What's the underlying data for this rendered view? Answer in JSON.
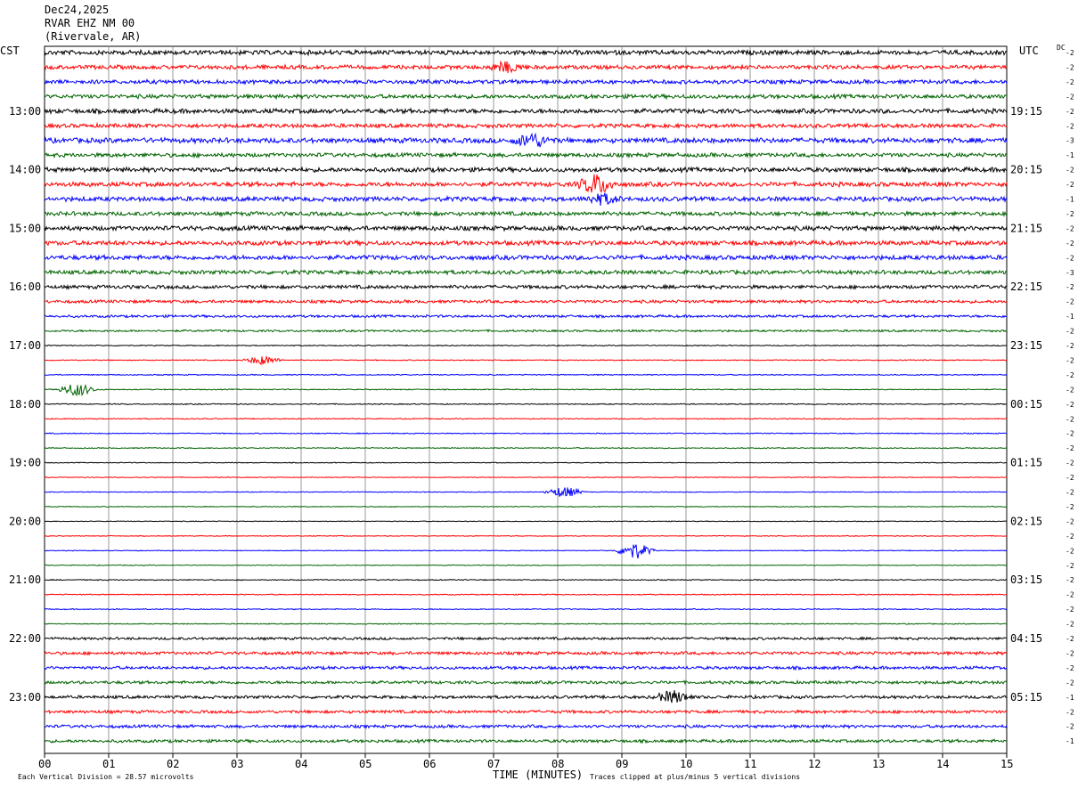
{
  "header": {
    "date": "Dec24,2025",
    "station": "RVAR EHZ NM 00",
    "location": "(Rivervale, AR)"
  },
  "labels": {
    "left_zone": "CST",
    "right_zone": "UTC",
    "dc_label": "DC",
    "x_axis_title": "TIME (MINUTES)",
    "scale_note": "Each Vertical Division =   28.57 microvolts",
    "clip_note": "Traces clipped at plus/minus 5 vertical divisions"
  },
  "colors": {
    "trace_cycle": [
      "#000000",
      "#ff0000",
      "#0000ff",
      "#006400"
    ],
    "grid": "#808080"
  },
  "chart_data": {
    "type": "line",
    "title": "RVAR EHZ NM 00",
    "xlabel": "TIME (MINUTES)",
    "ylabel": "",
    "xlim": [
      0,
      15
    ],
    "x_ticks": [
      "00",
      "01",
      "02",
      "03",
      "04",
      "05",
      "06",
      "07",
      "08",
      "09",
      "10",
      "11",
      "12",
      "13",
      "14",
      "15"
    ],
    "left_hour_labels": [
      "13:00",
      "14:00",
      "15:00",
      "16:00",
      "17:00",
      "18:00",
      "19:00",
      "20:00",
      "21:00",
      "22:00",
      "23:00"
    ],
    "right_hour_labels": [
      "19:15",
      "20:15",
      "21:15",
      "22:15",
      "23:15",
      "00:15",
      "01:15",
      "02:15",
      "03:15",
      "04:15",
      "05:15"
    ],
    "trace_count": 48,
    "dc_offsets": [
      -2,
      -2,
      -2,
      -2,
      -2,
      -2,
      -3,
      -1,
      -2,
      -2,
      -1,
      -2,
      -2,
      -2,
      -2,
      -3,
      -2,
      -2,
      -1,
      -2,
      -2,
      -2,
      -2,
      -2,
      -2,
      -2,
      -2,
      -2,
      -2,
      -2,
      -2,
      -2,
      -2,
      -2,
      -2,
      -2,
      -2,
      -2,
      -2,
      -2,
      -2,
      -2,
      -2,
      -2,
      -1,
      -2,
      -2,
      -1
    ],
    "trace_amplitude_relative": [
      0.9,
      0.8,
      0.8,
      0.8,
      0.9,
      0.8,
      1.0,
      0.8,
      0.9,
      0.9,
      0.9,
      0.8,
      0.9,
      0.9,
      0.9,
      0.8,
      0.7,
      0.6,
      0.5,
      0.4,
      0.2,
      0.2,
      0.2,
      0.2,
      0.2,
      0.2,
      0.2,
      0.2,
      0.15,
      0.15,
      0.15,
      0.15,
      0.15,
      0.15,
      0.15,
      0.15,
      0.2,
      0.2,
      0.2,
      0.2,
      0.5,
      0.6,
      0.6,
      0.6,
      0.6,
      0.6,
      0.6,
      0.6
    ],
    "events": [
      {
        "trace": 1,
        "minute": 7.2,
        "amplitude": 1.5
      },
      {
        "trace": 6,
        "minute": 7.6,
        "amplitude": 2.2
      },
      {
        "trace": 9,
        "minute": 8.6,
        "amplitude": 3.2
      },
      {
        "trace": 10,
        "minute": 8.7,
        "amplitude": 1.6
      },
      {
        "trace": 21,
        "minute": 3.4,
        "amplitude": 1.4
      },
      {
        "trace": 23,
        "minute": 0.5,
        "amplitude": 2.2
      },
      {
        "trace": 30,
        "minute": 8.1,
        "amplitude": 1.8
      },
      {
        "trace": 34,
        "minute": 9.2,
        "amplitude": 2.8
      },
      {
        "trace": 44,
        "minute": 9.8,
        "amplitude": 2.0
      }
    ],
    "grid": true
  }
}
